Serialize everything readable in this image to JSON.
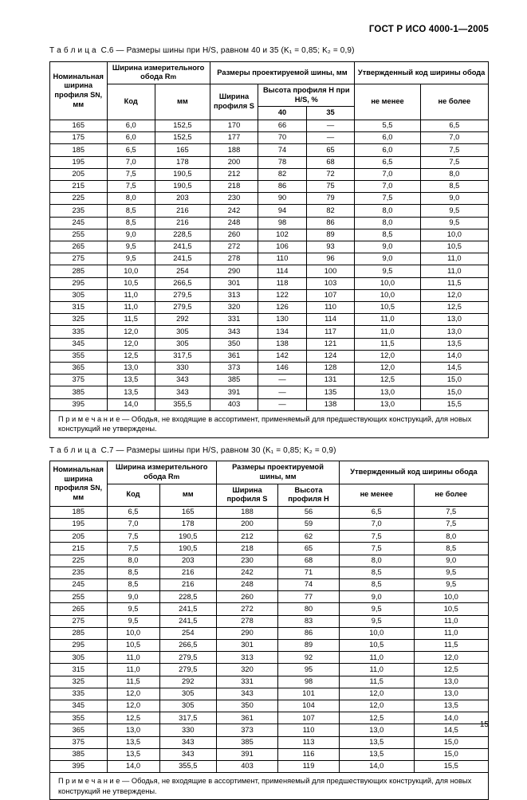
{
  "doc_header": "ГОСТ Р ИСО 4000-1—2005",
  "page_number": "15",
  "table_c6": {
    "title_prefix": "Т а б л и ц а",
    "title_num": "С.6",
    "title_rest": " — Размеры шины при H/S, равном 40 и 35 (K₁ = 0,85; K₂ = 0,9)",
    "head": {
      "col1": "Номинальная ширина профиля S",
      "col1_sub": "N",
      "col1_unit": ", мм",
      "rim_group": "Ширина измерительного обода R",
      "rim_sub": "m",
      "design_group": "Размеры проектируемой шины, мм",
      "approved_group": "Утвержденный код ширины обода",
      "code": "Код",
      "mm": "мм",
      "profile_width": "Ширина профиля S",
      "profile_height_group": "Высота профиля H при H/S, %",
      "h40": "40",
      "h35": "35",
      "min": "не менее",
      "max": "не более"
    },
    "rows": [
      [
        "165",
        "6,0",
        "152,5",
        "170",
        "66",
        "—",
        "5,5",
        "6,5"
      ],
      [
        "175",
        "6,0",
        "152,5",
        "177",
        "70",
        "—",
        "6,0",
        "7,0"
      ],
      [
        "185",
        "6,5",
        "165",
        "188",
        "74",
        "65",
        "6,0",
        "7,5"
      ],
      [
        "195",
        "7,0",
        "178",
        "200",
        "78",
        "68",
        "6,5",
        "7,5"
      ],
      [
        "205",
        "7,5",
        "190,5",
        "212",
        "82",
        "72",
        "7,0",
        "8,0"
      ],
      [
        "215",
        "7,5",
        "190,5",
        "218",
        "86",
        "75",
        "7,0",
        "8,5"
      ],
      [
        "225",
        "8,0",
        "203",
        "230",
        "90",
        "79",
        "7,5",
        "9,0"
      ],
      [
        "235",
        "8,5",
        "216",
        "242",
        "94",
        "82",
        "8,0",
        "9,5"
      ],
      [
        "245",
        "8,5",
        "216",
        "248",
        "98",
        "86",
        "8,0",
        "9,5"
      ],
      [
        "255",
        "9,0",
        "228,5",
        "260",
        "102",
        "89",
        "8,5",
        "10,0"
      ],
      [
        "265",
        "9,5",
        "241,5",
        "272",
        "106",
        "93",
        "9,0",
        "10,5"
      ],
      [
        "275",
        "9,5",
        "241,5",
        "278",
        "110",
        "96",
        "9,0",
        "11,0"
      ],
      [
        "285",
        "10,0",
        "254",
        "290",
        "114",
        "100",
        "9,5",
        "11,0"
      ],
      [
        "295",
        "10,5",
        "266,5",
        "301",
        "118",
        "103",
        "10,0",
        "11,5"
      ],
      [
        "305",
        "11,0",
        "279,5",
        "313",
        "122",
        "107",
        "10,0",
        "12,0"
      ],
      [
        "315",
        "11,0",
        "279,5",
        "320",
        "126",
        "110",
        "10,5",
        "12,5"
      ],
      [
        "325",
        "11,5",
        "292",
        "331",
        "130",
        "114",
        "11,0",
        "13,0"
      ],
      [
        "335",
        "12,0",
        "305",
        "343",
        "134",
        "117",
        "11,0",
        "13,0"
      ],
      [
        "345",
        "12,0",
        "305",
        "350",
        "138",
        "121",
        "11,5",
        "13,5"
      ],
      [
        "355",
        "12,5",
        "317,5",
        "361",
        "142",
        "124",
        "12,0",
        "14,0"
      ],
      [
        "365",
        "13,0",
        "330",
        "373",
        "146",
        "128",
        "12,0",
        "14,5"
      ],
      [
        "375",
        "13,5",
        "343",
        "385",
        "—",
        "131",
        "12,5",
        "15,0"
      ],
      [
        "385",
        "13,5",
        "343",
        "391",
        "—",
        "135",
        "13,0",
        "15,0"
      ],
      [
        "395",
        "14,0",
        "355,5",
        "403",
        "—",
        "138",
        "13,0",
        "15,5"
      ]
    ],
    "note_label": "П р и м е ч а н и е",
    "note_text": " — Ободья, не входящие в ассортимент, применяемый для предшествующих конструкций, для новых конструкций не утверждены."
  },
  "table_c7": {
    "title_prefix": "Т а б л и ц а",
    "title_num": "С.7",
    "title_rest": " — Размеры шины при H/S, равном 30 (K₁ = 0,85; K₂ = 0,9)",
    "head": {
      "col1": "Номинальная ширина профиля S",
      "col1_sub": "N",
      "col1_unit": ", мм",
      "rim_group": "Ширина измерительного обода R",
      "rim_sub": "m",
      "design_group": "Размеры проектируемой шины, мм",
      "approved_group": "Утвержденный код ширины обода",
      "code": "Код",
      "mm": "мм",
      "profile_width": "Ширина профиля S",
      "profile_height": "Высота профиля H",
      "min": "не менее",
      "max": "не более"
    },
    "rows": [
      [
        "185",
        "6,5",
        "165",
        "188",
        "56",
        "6,5",
        "7,5"
      ],
      [
        "195",
        "7,0",
        "178",
        "200",
        "59",
        "7,0",
        "7,5"
      ],
      [
        "205",
        "7,5",
        "190,5",
        "212",
        "62",
        "7,5",
        "8,0"
      ],
      [
        "215",
        "7,5",
        "190,5",
        "218",
        "65",
        "7,5",
        "8,5"
      ],
      [
        "225",
        "8,0",
        "203",
        "230",
        "68",
        "8,0",
        "9,0"
      ],
      [
        "235",
        "8,5",
        "216",
        "242",
        "71",
        "8,5",
        "9,5"
      ],
      [
        "245",
        "8,5",
        "216",
        "248",
        "74",
        "8,5",
        "9,5"
      ],
      [
        "255",
        "9,0",
        "228,5",
        "260",
        "77",
        "9,0",
        "10,0"
      ],
      [
        "265",
        "9,5",
        "241,5",
        "272",
        "80",
        "9,5",
        "10,5"
      ],
      [
        "275",
        "9,5",
        "241,5",
        "278",
        "83",
        "9,5",
        "11,0"
      ],
      [
        "285",
        "10,0",
        "254",
        "290",
        "86",
        "10,0",
        "11,0"
      ],
      [
        "295",
        "10,5",
        "266,5",
        "301",
        "89",
        "10,5",
        "11,5"
      ],
      [
        "305",
        "11,0",
        "279,5",
        "313",
        "92",
        "11,0",
        "12,0"
      ],
      [
        "315",
        "11,0",
        "279,5",
        "320",
        "95",
        "11,0",
        "12,5"
      ],
      [
        "325",
        "11,5",
        "292",
        "331",
        "98",
        "11,5",
        "13,0"
      ],
      [
        "335",
        "12,0",
        "305",
        "343",
        "101",
        "12,0",
        "13,0"
      ],
      [
        "345",
        "12,0",
        "305",
        "350",
        "104",
        "12,0",
        "13,5"
      ],
      [
        "355",
        "12,5",
        "317,5",
        "361",
        "107",
        "12,5",
        "14,0"
      ],
      [
        "365",
        "13,0",
        "330",
        "373",
        "110",
        "13,0",
        "14,5"
      ],
      [
        "375",
        "13,5",
        "343",
        "385",
        "113",
        "13,5",
        "15,0"
      ],
      [
        "385",
        "13,5",
        "343",
        "391",
        "116",
        "13,5",
        "15,0"
      ],
      [
        "395",
        "14,0",
        "355,5",
        "403",
        "119",
        "14,0",
        "15,5"
      ]
    ],
    "note_label": "П р и м е ч а н и е",
    "note_text": " — Ободья, не входящие в ассортимент, применяемый для предшествующих конструкций, для новых конструкций не утверждены."
  }
}
